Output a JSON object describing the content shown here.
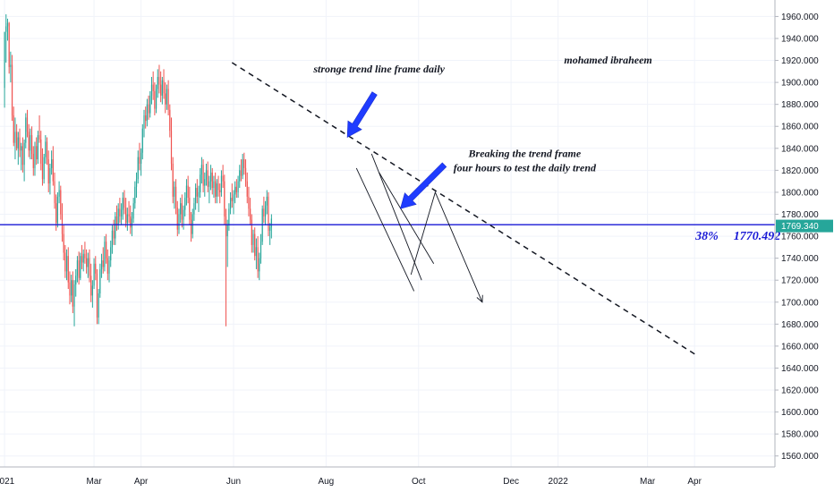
{
  "chart_data": {
    "type": "candlestick",
    "instrument_note": "",
    "ylim": [
      1550,
      1975
    ],
    "y_ticks": [
      "1960.000",
      "1940.000",
      "1920.000",
      "1900.000",
      "1880.000",
      "1860.000",
      "1840.000",
      "1820.000",
      "1800.000",
      "1780.000",
      "1760.000",
      "1740.000",
      "1720.000",
      "1700.000",
      "1680.000",
      "1660.000",
      "1640.000",
      "1620.000",
      "1600.000",
      "1580.000",
      "1560.000"
    ],
    "x_ticks": [
      {
        "label": "2021",
        "day": 0
      },
      {
        "label": "Mar",
        "day": 59
      },
      {
        "label": "Apr",
        "day": 90
      },
      {
        "label": "Jun",
        "day": 151
      },
      {
        "label": "Aug",
        "day": 212
      },
      {
        "label": "Oct",
        "day": 273
      },
      {
        "label": "Dec",
        "day": 334
      },
      {
        "label": "2022",
        "day": 365
      },
      {
        "label": "Mar",
        "day": 424
      },
      {
        "label": "Apr",
        "day": 455
      }
    ],
    "x_domain_days": [
      -3,
      508
    ],
    "current_price": {
      "value": 1769.34,
      "label": "1769.340",
      "color": "#26a69a"
    },
    "horizontal_level": {
      "value": 1770.492,
      "percent_label": "38%",
      "value_label": "1770.492",
      "color": "#1a1ad6"
    },
    "trend_line": {
      "from": {
        "day": 150,
        "price": 1918
      },
      "to": {
        "day": 456,
        "price": 1652
      },
      "style": "dashed"
    },
    "channel_lines": [
      {
        "from": {
          "day": 242,
          "price": 1835
        },
        "to": {
          "day": 275,
          "price": 1720
        }
      },
      {
        "from": {
          "day": 232,
          "price": 1822
        },
        "to": {
          "day": 270,
          "price": 1710
        }
      },
      {
        "from": {
          "day": 247,
          "price": 1818
        },
        "to": {
          "day": 283,
          "price": 1735
        }
      }
    ],
    "projection": {
      "points": [
        {
          "day": 268,
          "price": 1725
        },
        {
          "day": 284,
          "price": 1800
        },
        {
          "day": 315,
          "price": 1700
        }
      ]
    },
    "arrows": [
      {
        "tip": {
          "day": 226,
          "price": 1850
        },
        "tail": {
          "day": 244,
          "price": 1890
        }
      },
      {
        "tip": {
          "day": 261,
          "price": 1785
        },
        "tail": {
          "day": 290,
          "price": 1825
        }
      }
    ],
    "annotations": [
      {
        "text": "stronge trend line frame daily",
        "day": 247,
        "price": 1909
      },
      {
        "text": "Breaking the trend frame",
        "day": 343,
        "price": 1832
      },
      {
        "text": "four hours to test the daily trend",
        "day": 343,
        "price": 1819
      },
      {
        "text": "mohamed ibraheem",
        "day": 398,
        "price": 1917
      }
    ],
    "candle_colors": {
      "up": "#26a69a",
      "down": "#ef5350"
    },
    "ohlc": [
      [
        0,
        1895,
        1946,
        1877,
        1946
      ],
      [
        1,
        1946,
        1962,
        1918,
        1951
      ],
      [
        2,
        1951,
        1958,
        1938,
        1954
      ],
      [
        3,
        1954,
        1955,
        1908,
        1914
      ],
      [
        4,
        1914,
        1928,
        1900,
        1916
      ],
      [
        5,
        1916,
        1925,
        1865,
        1870
      ],
      [
        6,
        1870,
        1878,
        1842,
        1845
      ],
      [
        7,
        1845,
        1868,
        1830,
        1855
      ],
      [
        8,
        1855,
        1862,
        1838,
        1840
      ],
      [
        9,
        1840,
        1855,
        1825,
        1850
      ],
      [
        10,
        1850,
        1858,
        1832,
        1838
      ],
      [
        11,
        1838,
        1845,
        1820,
        1842
      ],
      [
        12,
        1842,
        1850,
        1818,
        1825
      ],
      [
        13,
        1825,
        1848,
        1810,
        1845
      ],
      [
        14,
        1845,
        1872,
        1840,
        1868
      ],
      [
        15,
        1868,
        1875,
        1850,
        1855
      ],
      [
        16,
        1855,
        1862,
        1832,
        1838
      ],
      [
        17,
        1838,
        1858,
        1830,
        1852
      ],
      [
        18,
        1852,
        1860,
        1830,
        1835
      ],
      [
        19,
        1835,
        1842,
        1815,
        1822
      ],
      [
        20,
        1822,
        1846,
        1815,
        1842
      ],
      [
        21,
        1842,
        1850,
        1825,
        1830
      ],
      [
        22,
        1830,
        1856,
        1826,
        1852
      ],
      [
        23,
        1852,
        1870,
        1845,
        1848
      ],
      [
        24,
        1848,
        1856,
        1820,
        1826
      ],
      [
        25,
        1826,
        1840,
        1806,
        1812
      ],
      [
        26,
        1812,
        1835,
        1808,
        1832
      ],
      [
        27,
        1832,
        1852,
        1826,
        1846
      ],
      [
        28,
        1846,
        1850,
        1825,
        1830
      ],
      [
        29,
        1830,
        1838,
        1800,
        1808
      ],
      [
        30,
        1808,
        1826,
        1798,
        1822
      ],
      [
        31,
        1822,
        1838,
        1816,
        1830
      ],
      [
        32,
        1830,
        1842,
        1806,
        1810
      ],
      [
        33,
        1810,
        1818,
        1785,
        1790
      ],
      [
        34,
        1790,
        1798,
        1765,
        1772
      ],
      [
        35,
        1772,
        1800,
        1768,
        1796
      ],
      [
        36,
        1796,
        1810,
        1790,
        1802
      ],
      [
        37,
        1802,
        1806,
        1775,
        1780
      ],
      [
        38,
        1780,
        1790,
        1755,
        1762
      ],
      [
        39,
        1762,
        1770,
        1738,
        1745
      ],
      [
        40,
        1745,
        1752,
        1722,
        1728
      ],
      [
        41,
        1728,
        1748,
        1720,
        1742
      ],
      [
        42,
        1742,
        1750,
        1712,
        1718
      ],
      [
        43,
        1718,
        1728,
        1698,
        1706
      ],
      [
        44,
        1706,
        1725,
        1700,
        1720
      ],
      [
        45,
        1720,
        1728,
        1690,
        1696
      ],
      [
        46,
        1696,
        1720,
        1678,
        1716
      ],
      [
        47,
        1716,
        1730,
        1705,
        1724
      ],
      [
        48,
        1724,
        1742,
        1718,
        1738
      ],
      [
        49,
        1738,
        1746,
        1716,
        1722
      ],
      [
        50,
        1722,
        1745,
        1720,
        1742
      ],
      [
        51,
        1742,
        1752,
        1730,
        1736
      ],
      [
        52,
        1736,
        1748,
        1728,
        1744
      ],
      [
        53,
        1744,
        1755,
        1735,
        1740
      ],
      [
        54,
        1740,
        1748,
        1726,
        1732
      ],
      [
        55,
        1732,
        1745,
        1722,
        1740
      ],
      [
        56,
        1740,
        1748,
        1718,
        1724
      ],
      [
        57,
        1724,
        1735,
        1700,
        1706
      ],
      [
        58,
        1706,
        1720,
        1695,
        1715
      ],
      [
        59,
        1715,
        1740,
        1712,
        1735
      ],
      [
        60,
        1735,
        1742,
        1720,
        1726
      ],
      [
        61,
        1726,
        1730,
        1680,
        1686
      ],
      [
        62,
        1686,
        1712,
        1680,
        1708
      ],
      [
        63,
        1708,
        1735,
        1704,
        1730
      ],
      [
        64,
        1730,
        1744,
        1722,
        1738
      ],
      [
        65,
        1738,
        1750,
        1726,
        1732
      ],
      [
        66,
        1732,
        1760,
        1728,
        1755
      ],
      [
        67,
        1755,
        1762,
        1735,
        1740
      ],
      [
        68,
        1740,
        1748,
        1720,
        1726
      ],
      [
        69,
        1726,
        1742,
        1718,
        1738
      ],
      [
        70,
        1738,
        1756,
        1732,
        1750
      ],
      [
        71,
        1750,
        1770,
        1744,
        1765
      ],
      [
        72,
        1765,
        1775,
        1752,
        1758
      ],
      [
        73,
        1758,
        1782,
        1752,
        1778
      ],
      [
        74,
        1778,
        1788,
        1765,
        1770
      ],
      [
        75,
        1770,
        1790,
        1766,
        1785
      ],
      [
        76,
        1785,
        1795,
        1772,
        1778
      ],
      [
        77,
        1778,
        1790,
        1770,
        1784
      ],
      [
        78,
        1784,
        1800,
        1775,
        1795
      ],
      [
        79,
        1795,
        1802,
        1780,
        1786
      ],
      [
        80,
        1786,
        1795,
        1768,
        1772
      ],
      [
        81,
        1772,
        1786,
        1765,
        1780
      ],
      [
        82,
        1780,
        1792,
        1772,
        1778
      ],
      [
        83,
        1778,
        1788,
        1762,
        1768
      ],
      [
        84,
        1768,
        1782,
        1760,
        1776
      ],
      [
        85,
        1776,
        1795,
        1772,
        1790
      ],
      [
        86,
        1790,
        1810,
        1785,
        1805
      ],
      [
        87,
        1805,
        1818,
        1795,
        1812
      ],
      [
        88,
        1812,
        1838,
        1808,
        1832
      ],
      [
        89,
        1832,
        1845,
        1820,
        1826
      ],
      [
        90,
        1826,
        1840,
        1815,
        1836
      ],
      [
        91,
        1836,
        1862,
        1830,
        1858
      ],
      [
        92,
        1858,
        1875,
        1850,
        1870
      ],
      [
        93,
        1870,
        1878,
        1858,
        1865
      ],
      [
        94,
        1865,
        1885,
        1860,
        1880
      ],
      [
        95,
        1880,
        1888,
        1866,
        1872
      ],
      [
        96,
        1872,
        1892,
        1868,
        1888
      ],
      [
        97,
        1888,
        1905,
        1880,
        1898
      ],
      [
        98,
        1898,
        1910,
        1884,
        1892
      ],
      [
        99,
        1892,
        1900,
        1870,
        1876
      ],
      [
        100,
        1876,
        1898,
        1872,
        1894
      ],
      [
        101,
        1894,
        1912,
        1886,
        1905
      ],
      [
        102,
        1905,
        1916,
        1890,
        1898
      ],
      [
        103,
        1898,
        1910,
        1882,
        1888
      ],
      [
        104,
        1888,
        1905,
        1880,
        1902
      ],
      [
        105,
        1902,
        1912,
        1885,
        1890
      ],
      [
        106,
        1890,
        1900,
        1872,
        1880
      ],
      [
        107,
        1880,
        1898,
        1875,
        1894
      ],
      [
        108,
        1894,
        1902,
        1870,
        1875
      ],
      [
        109,
        1875,
        1880,
        1850,
        1856
      ],
      [
        110,
        1856,
        1868,
        1820,
        1826
      ],
      [
        111,
        1826,
        1832,
        1790,
        1796
      ],
      [
        112,
        1796,
        1810,
        1785,
        1805
      ],
      [
        113,
        1805,
        1812,
        1780,
        1786
      ],
      [
        114,
        1786,
        1792,
        1760,
        1766
      ],
      [
        115,
        1766,
        1785,
        1762,
        1780
      ],
      [
        116,
        1780,
        1795,
        1772,
        1790
      ],
      [
        117,
        1790,
        1798,
        1768,
        1775
      ],
      [
        118,
        1775,
        1788,
        1766,
        1784
      ],
      [
        119,
        1784,
        1800,
        1778,
        1795
      ],
      [
        120,
        1795,
        1812,
        1788,
        1806
      ],
      [
        121,
        1806,
        1815,
        1790,
        1795
      ],
      [
        122,
        1795,
        1805,
        1770,
        1775
      ],
      [
        123,
        1775,
        1782,
        1755,
        1762
      ],
      [
        124,
        1762,
        1785,
        1758,
        1780
      ],
      [
        125,
        1780,
        1795,
        1774,
        1790
      ],
      [
        126,
        1790,
        1808,
        1784,
        1804
      ],
      [
        127,
        1804,
        1812,
        1790,
        1796
      ],
      [
        128,
        1796,
        1806,
        1782,
        1800
      ],
      [
        129,
        1800,
        1822,
        1795,
        1816
      ],
      [
        130,
        1816,
        1832,
        1808,
        1825
      ],
      [
        131,
        1825,
        1830,
        1800,
        1806
      ],
      [
        132,
        1806,
        1818,
        1796,
        1812
      ],
      [
        133,
        1812,
        1826,
        1806,
        1820
      ],
      [
        134,
        1820,
        1828,
        1800,
        1805
      ],
      [
        135,
        1805,
        1815,
        1790,
        1810
      ],
      [
        136,
        1810,
        1825,
        1802,
        1818
      ],
      [
        137,
        1818,
        1822,
        1798,
        1804
      ],
      [
        138,
        1804,
        1815,
        1795,
        1810
      ],
      [
        139,
        1810,
        1818,
        1790,
        1796
      ],
      [
        140,
        1796,
        1812,
        1790,
        1808
      ],
      [
        141,
        1808,
        1815,
        1796,
        1802
      ],
      [
        142,
        1802,
        1808,
        1790,
        1800
      ],
      [
        143,
        1800,
        1820,
        1796,
        1815
      ],
      [
        144,
        1815,
        1825,
        1804,
        1810
      ],
      [
        145,
        1810,
        1816,
        1770,
        1778
      ],
      [
        146,
        1778,
        1785,
        1678,
        1760
      ],
      [
        147,
        1760,
        1775,
        1732,
        1770
      ],
      [
        148,
        1770,
        1790,
        1765,
        1785
      ],
      [
        149,
        1785,
        1800,
        1780,
        1795
      ],
      [
        150,
        1795,
        1808,
        1786,
        1792
      ],
      [
        151,
        1792,
        1802,
        1780,
        1798
      ],
      [
        152,
        1798,
        1810,
        1790,
        1805
      ],
      [
        153,
        1805,
        1812,
        1795,
        1800
      ],
      [
        154,
        1800,
        1815,
        1795,
        1810
      ],
      [
        155,
        1810,
        1825,
        1804,
        1820
      ],
      [
        156,
        1820,
        1830,
        1810,
        1815
      ],
      [
        157,
        1815,
        1835,
        1812,
        1830
      ],
      [
        158,
        1830,
        1836,
        1816,
        1822
      ],
      [
        159,
        1822,
        1830,
        1805,
        1810
      ],
      [
        160,
        1810,
        1818,
        1790,
        1796
      ],
      [
        161,
        1796,
        1805,
        1778,
        1785
      ],
      [
        162,
        1785,
        1795,
        1770,
        1775
      ],
      [
        163,
        1775,
        1780,
        1745,
        1752
      ],
      [
        164,
        1752,
        1766,
        1745,
        1762
      ],
      [
        165,
        1762,
        1768,
        1738,
        1742
      ],
      [
        166,
        1742,
        1758,
        1730,
        1750
      ],
      [
        167,
        1750,
        1760,
        1722,
        1728
      ],
      [
        168,
        1728,
        1745,
        1720,
        1740
      ],
      [
        169,
        1740,
        1762,
        1735,
        1755
      ],
      [
        170,
        1755,
        1788,
        1752,
        1785
      ],
      [
        171,
        1785,
        1796,
        1772,
        1778
      ],
      [
        172,
        1778,
        1792,
        1770,
        1788
      ],
      [
        173,
        1788,
        1802,
        1780,
        1796
      ],
      [
        174,
        1796,
        1800,
        1760,
        1765
      ],
      [
        175,
        1765,
        1772,
        1752,
        1768
      ],
      [
        176,
        1768,
        1780,
        1758,
        1776
      ]
    ]
  }
}
